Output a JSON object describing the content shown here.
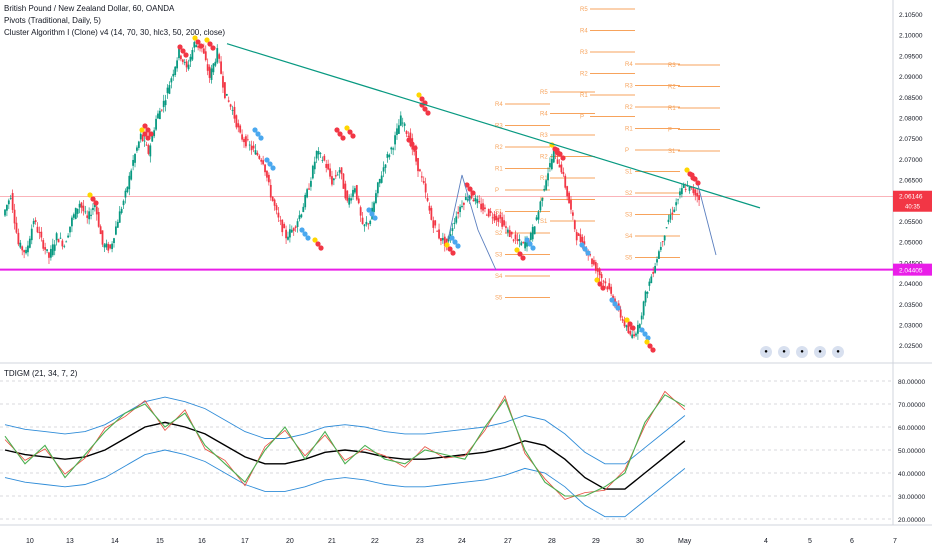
{
  "header": {
    "title": "British Pound / New Zealand Dollar, 60, OANDA",
    "pivots_label": "Pivots (Traditional, Daily, 5)",
    "cluster_label": "Cluster Algorithm I (Clone) v4 (14, 70, 30, hlc3, 50, 200, close)",
    "osc_label": "TDIGM (21, 34, 7, 2)"
  },
  "price_axis": {
    "ticks": [
      "2.10500",
      "2.10000",
      "2.09500",
      "2.09000",
      "2.08500",
      "2.08000",
      "2.07500",
      "2.07000",
      "2.06500",
      "2.06000",
      "2.05500",
      "2.05000",
      "2.04500",
      "2.04000",
      "2.03500",
      "2.03000",
      "2.02500"
    ],
    "current_price": "2.06146",
    "countdown": "40:35",
    "line_level_label": "2.04405"
  },
  "osc_axis": {
    "ticks": [
      "80.00000",
      "70.00000",
      "60.00000",
      "50.00000",
      "40.00000",
      "30.00000",
      "20.00000"
    ]
  },
  "time_axis": {
    "labels": [
      "10",
      "13",
      "14",
      "15",
      "16",
      "17",
      "20",
      "21",
      "22",
      "23",
      "24",
      "27",
      "28",
      "29",
      "30",
      "May",
      "4",
      "5",
      "6",
      "7"
    ]
  },
  "pivot_labels": [
    "R5",
    "R4",
    "R3",
    "R2",
    "R1",
    "P",
    "S1",
    "S2",
    "S3",
    "S4",
    "S5"
  ],
  "colors": {
    "trendline": "#089981",
    "hline": "#e91ee8",
    "current_price": "#f23645",
    "pivot": "#f7a35c",
    "candle_up": "#089981",
    "candle_down": "#f23645",
    "dot_red": "#f23645",
    "dot_blue": "#4aa8ef",
    "dot_yellow": "#ffd600",
    "band": "#2f8cd8",
    "osc_green": "#4caf50",
    "osc_red": "#e74c3c",
    "osc_black": "#000000"
  },
  "chart_data": {
    "type": "line",
    "symbol": "GBPNZD",
    "y_range": [
      2.022,
      2.107
    ],
    "horizontal_level": 2.04405,
    "current_price": 2.06146,
    "trendline": {
      "from": [
        16.7,
        2.098
      ],
      "to": [
        4.8,
        2.0588
      ]
    },
    "price_path": [
      2.057,
      2.062,
      2.05,
      2.048,
      2.056,
      2.051,
      2.047,
      2.052,
      2.05,
      2.056,
      2.06,
      2.056,
      2.06,
      2.05,
      2.049,
      2.056,
      2.062,
      2.07,
      2.076,
      2.072,
      2.08,
      2.084,
      2.09,
      2.096,
      2.092,
      2.098,
      2.097,
      2.09,
      2.096,
      2.086,
      2.082,
      2.076,
      2.074,
      2.072,
      2.07,
      2.062,
      2.056,
      2.052,
      2.054,
      2.058,
      2.064,
      2.072,
      2.07,
      2.065,
      2.068,
      2.06,
      2.064,
      2.054,
      2.056,
      2.064,
      2.07,
      2.074,
      2.08,
      2.076,
      2.07,
      2.064,
      2.056,
      2.052,
      2.05,
      2.056,
      2.06,
      2.062,
      2.06,
      2.058,
      2.057,
      2.056,
      2.053,
      2.051,
      2.05,
      2.052,
      2.058,
      2.066,
      2.072,
      2.068,
      2.06,
      2.052,
      2.05,
      2.046,
      2.043,
      2.04,
      2.036,
      2.032,
      2.028,
      2.03,
      2.038,
      2.044,
      2.05,
      2.056,
      2.06,
      2.064,
      2.063,
      2.0615
    ]
  }
}
